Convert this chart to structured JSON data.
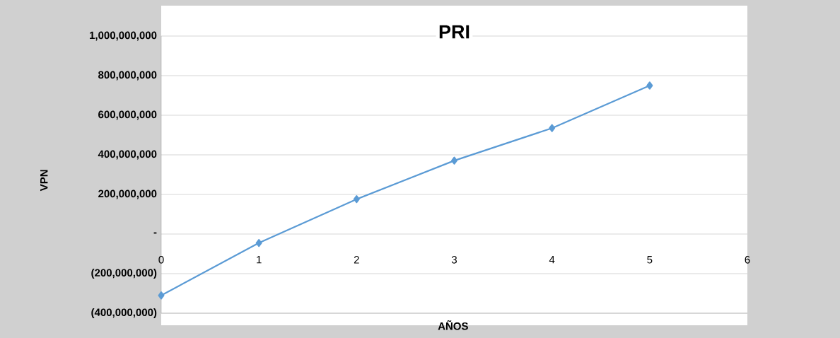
{
  "chart_data": {
    "type": "line",
    "title": "PRI",
    "xlabel": "AÑOS",
    "ylabel": "VPN",
    "x": [
      0,
      1,
      2,
      3,
      4,
      5
    ],
    "series": [
      {
        "color": "#5b9bd5",
        "values": [
          -310000000,
          -45000000,
          176000000,
          371000000,
          535000000,
          750000000
        ]
      }
    ],
    "xlim": [
      0,
      6
    ],
    "xticks": [
      0,
      1,
      2,
      3,
      4,
      5,
      6
    ],
    "ylim": [
      -400000000,
      1000000000
    ],
    "yticks": [
      {
        "value": -400000000,
        "label": "(400,000,000)"
      },
      {
        "value": -200000000,
        "label": "(200,000,000)"
      },
      {
        "value": 0,
        "label": "-"
      },
      {
        "value": 200000000,
        "label": "200,000,000"
      },
      {
        "value": 400000000,
        "label": "400,000,000"
      },
      {
        "value": 600000000,
        "label": "600,000,000"
      },
      {
        "value": 800000000,
        "label": "800,000,000"
      },
      {
        "value": 1000000000,
        "label": "1,000,000,000"
      }
    ],
    "grid": "y",
    "marker": "diamond",
    "line_style": "solid"
  }
}
